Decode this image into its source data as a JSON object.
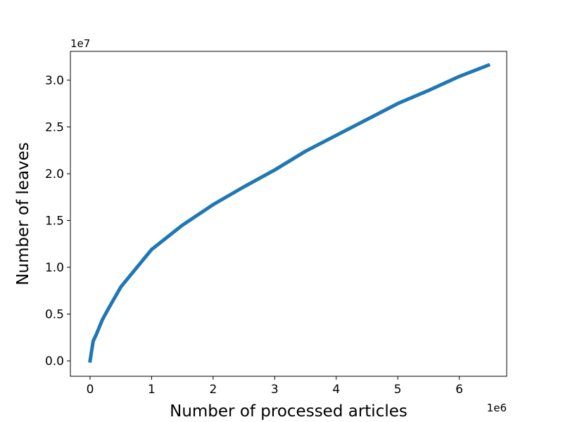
{
  "chart_data": {
    "type": "line",
    "x_label": "Number of processed articles",
    "y_label": "Number of leaves",
    "x_offset_label": "1e6",
    "y_offset_label": "1e7",
    "x": [
      0,
      50000,
      100000,
      200000,
      300000,
      500000,
      1000000,
      1500000,
      2000000,
      2500000,
      3000000,
      3500000,
      4000000,
      4500000,
      5000000,
      5500000,
      6000000,
      6470000
    ],
    "series": [
      {
        "name": "leaves",
        "color": "#1f77b4",
        "values": [
          0,
          2100000,
          2800000,
          4400000,
          5600000,
          7900000,
          11900000,
          14500000,
          16700000,
          18600000,
          20400000,
          22400000,
          24100000,
          25800000,
          27500000,
          28900000,
          30400000,
          31600000
        ]
      }
    ],
    "xlim": [
      -320000,
      6770000
    ],
    "ylim": [
      -1650000,
      33080000
    ],
    "xticks": [
      0,
      {
        "value": 1000000,
        "label": "1"
      },
      {
        "value": 2000000,
        "label": "2"
      },
      {
        "value": 3000000,
        "label": "3"
      },
      {
        "value": 4000000,
        "label": "4"
      },
      {
        "value": 5000000,
        "label": "5"
      },
      {
        "value": 6000000,
        "label": "6"
      }
    ],
    "yticks": [
      {
        "value": 0,
        "label": "0.0"
      },
      {
        "value": 5000000,
        "label": "0.5"
      },
      {
        "value": 10000000,
        "label": "1.0"
      },
      {
        "value": 15000000,
        "label": "1.5"
      },
      {
        "value": 20000000,
        "label": "2.0"
      },
      {
        "value": 25000000,
        "label": "2.5"
      },
      {
        "value": 30000000,
        "label": "3.0"
      }
    ],
    "grid": false
  }
}
